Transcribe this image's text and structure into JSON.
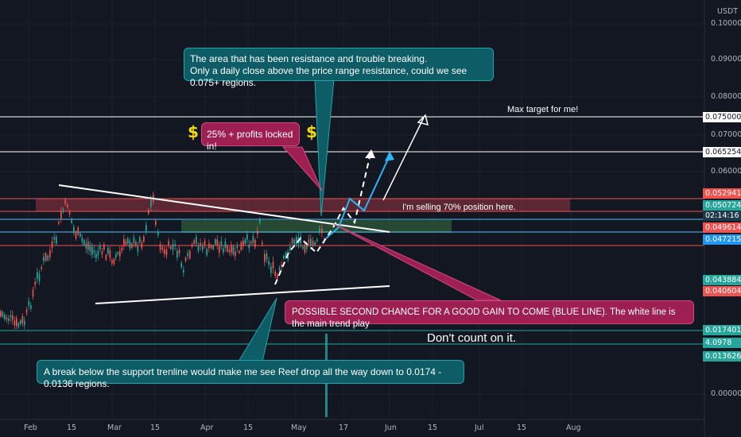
{
  "chart_data": {
    "type": "candlestick",
    "currency": "USDT",
    "x_ticks": [
      "Feb",
      "15",
      "Mar",
      "15",
      "Apr",
      "15",
      "May",
      "17",
      "Jun",
      "15",
      "Jul",
      "15",
      "Aug"
    ],
    "y_ticks": [
      "0.100000",
      "0.090000",
      "0.080000",
      "0.070000",
      "0.060000",
      "0.000000"
    ],
    "price_levels": [
      {
        "label": "0.075000",
        "kind": "white"
      },
      {
        "label": "0.065254",
        "kind": "white"
      },
      {
        "label": "0.052941",
        "kind": "red"
      },
      {
        "label": "0.050724",
        "kind": "teal"
      },
      {
        "label": "02:14:16",
        "kind": "dark"
      },
      {
        "label": "0.049614",
        "kind": "red"
      },
      {
        "label": "0.047215",
        "kind": "blue"
      },
      {
        "label": "0.043884",
        "kind": "teal"
      },
      {
        "label": "0.040604",
        "kind": "red"
      },
      {
        "label": "0.017401",
        "kind": "teal"
      },
      {
        "label": "4.0978",
        "kind": "teal"
      },
      {
        "label": "0.013626",
        "kind": "teal"
      }
    ],
    "annotations": {
      "resistance_note_line1": "The area that has been resistance and trouble breaking.",
      "resistance_note_line2": "Only a daily close above the price range resistance, could we see 0.075+ regions.",
      "profits_note": "25% + profits locked in!",
      "dollar_sign": "$",
      "max_target": "Max target for me!",
      "selling_note": "I'm selling 70% position here.",
      "second_chance_note": "POSSIBLE SECOND CHANCE FOR A GOOD GAIN TO COME (BLUE LINE). The white line is the main trend play",
      "dont_count": "Don't count on it.",
      "support_break_note": "A break below the support trenline would make me see Reef drop all the way down to 0.0174 - 0.0136 regions."
    }
  },
  "colors": {
    "background": "#131722",
    "up": "#26a69a",
    "down": "#ef5350",
    "teal_callout": "#0d5c66",
    "pink_callout": "#9e1f52",
    "dollar": "#f5d90a"
  }
}
